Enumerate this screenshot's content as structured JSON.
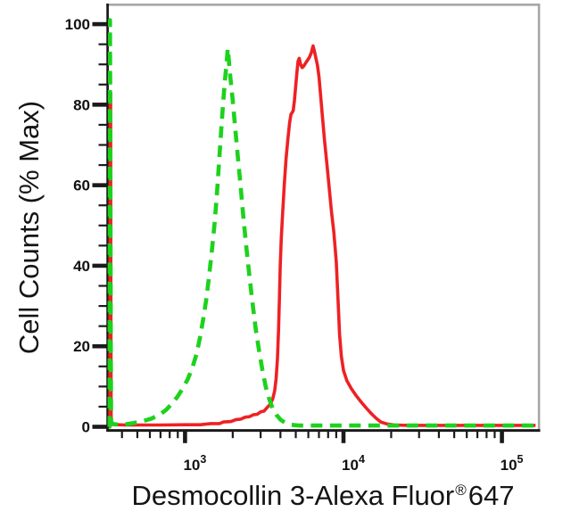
{
  "labels": {
    "ylabel": "Cell Counts (% Max)",
    "xlabel_main": "Desmocollin 3-Alexa Fluor",
    "xlabel_registered": "®",
    "xlabel_suffix": "647"
  },
  "colors": {
    "background": "#ffffff",
    "axis": "#1a1a1a",
    "frame": "#a6a6a6",
    "tick_text": "#111111",
    "red_series": "#ee2124",
    "green_series": "#1dd21d"
  },
  "chart_data": {
    "type": "line",
    "title": "",
    "xlabel": "Desmocollin 3-Alexa Fluor®647",
    "ylabel": "Cell Counts (% Max)",
    "x_scale": "log10",
    "xlim": [
      322,
      170000
    ],
    "ylim": [
      0,
      105
    ],
    "grid": false,
    "legend": "none",
    "y_major_ticks": [
      {
        "value": 0,
        "label": "0"
      },
      {
        "value": 20,
        "label": "20"
      },
      {
        "value": 40,
        "label": "40"
      },
      {
        "value": 60,
        "label": "60"
      },
      {
        "value": 80,
        "label": "80"
      },
      {
        "value": 100,
        "label": "100"
      }
    ],
    "y_minor_ticks": [
      5,
      10,
      15,
      25,
      30,
      35,
      45,
      50,
      55,
      65,
      70,
      75,
      85,
      90,
      95
    ],
    "x_major_ticks": [
      {
        "value": 1000,
        "base": "10",
        "exp": "3"
      },
      {
        "value": 10000,
        "base": "10",
        "exp": "4"
      },
      {
        "value": 100000,
        "base": "10",
        "exp": "5"
      }
    ],
    "x_minor_ticks": [
      400,
      500,
      600,
      700,
      800,
      900,
      2000,
      3000,
      4000,
      5000,
      6000,
      7000,
      8000,
      9000,
      20000,
      30000,
      40000,
      50000,
      60000,
      70000,
      80000,
      90000
    ],
    "series": [
      {
        "name": "red_solid",
        "style": "solid",
        "color": "#ee2124",
        "peak": {
          "x": 6430,
          "y": 94.6
        },
        "points": [
          [
            330,
            0
          ],
          [
            335,
            0
          ],
          [
            336,
            45
          ],
          [
            337,
            83
          ],
          [
            339,
            83
          ],
          [
            340,
            40
          ],
          [
            342,
            0.6
          ],
          [
            420,
            0.45
          ],
          [
            700,
            0.45
          ],
          [
            1000,
            0.5
          ],
          [
            1250,
            0.5
          ],
          [
            1450,
            0.8
          ],
          [
            1650,
            0.8
          ],
          [
            1750,
            1.2
          ],
          [
            1950,
            1.3
          ],
          [
            2100,
            1.8
          ],
          [
            2250,
            1.9
          ],
          [
            2400,
            2.4
          ],
          [
            2550,
            2.5
          ],
          [
            2700,
            3.0
          ],
          [
            2850,
            3.1
          ],
          [
            3000,
            3.7
          ],
          [
            3150,
            3.9
          ],
          [
            3300,
            4.8
          ],
          [
            3450,
            5.6
          ],
          [
            3580,
            7
          ],
          [
            3680,
            9
          ],
          [
            3760,
            12
          ],
          [
            3830,
            17
          ],
          [
            3890,
            24
          ],
          [
            3940,
            32
          ],
          [
            3990,
            40
          ],
          [
            4050,
            47
          ],
          [
            4130,
            53
          ],
          [
            4230,
            60
          ],
          [
            4340,
            66.5
          ],
          [
            4460,
            71.5
          ],
          [
            4570,
            75.5
          ],
          [
            4660,
            77.6
          ],
          [
            4740,
            78
          ],
          [
            4820,
            78.6
          ],
          [
            4900,
            81
          ],
          [
            4990,
            84.5
          ],
          [
            5080,
            88
          ],
          [
            5170,
            90.8
          ],
          [
            5260,
            91.5
          ],
          [
            5360,
            90
          ],
          [
            5490,
            89.2
          ],
          [
            5620,
            89.6
          ],
          [
            5760,
            90.3
          ],
          [
            5920,
            91
          ],
          [
            6100,
            91.8
          ],
          [
            6280,
            93
          ],
          [
            6430,
            94.6
          ],
          [
            6560,
            93.2
          ],
          [
            6700,
            91.5
          ],
          [
            6850,
            89.8
          ],
          [
            7000,
            87
          ],
          [
            7150,
            83
          ],
          [
            7350,
            77.5
          ],
          [
            7600,
            71
          ],
          [
            7850,
            65.5
          ],
          [
            8100,
            60
          ],
          [
            8400,
            53.5
          ],
          [
            8700,
            48.3
          ],
          [
            9000,
            41
          ],
          [
            9250,
            31
          ],
          [
            9450,
            23
          ],
          [
            9700,
            17.5
          ],
          [
            10000,
            14
          ],
          [
            10500,
            11.5
          ],
          [
            11200,
            9.5
          ],
          [
            12000,
            7.8
          ],
          [
            12900,
            6.2
          ],
          [
            13900,
            4.7
          ],
          [
            14900,
            3.4
          ],
          [
            16000,
            2.2
          ],
          [
            17200,
            1.2
          ],
          [
            18800,
            0.7
          ],
          [
            21000,
            0.45
          ],
          [
            26000,
            0.35
          ],
          [
            40000,
            0.35
          ],
          [
            70000,
            0.35
          ],
          [
            120000,
            0.35
          ],
          [
            163000,
            0.35
          ]
        ]
      },
      {
        "name": "green_dashed",
        "style": "dashed",
        "color": "#1dd21d",
        "peak": {
          "x": 1860,
          "y": 94
        },
        "points": [
          [
            330,
            0
          ],
          [
            334,
            0
          ],
          [
            335,
            55
          ],
          [
            336,
            101
          ],
          [
            338,
            70
          ],
          [
            340,
            20
          ],
          [
            342,
            1
          ],
          [
            360,
            0.6
          ],
          [
            420,
            0.6
          ],
          [
            470,
            0.9
          ],
          [
            540,
            1.4
          ],
          [
            610,
            2
          ],
          [
            690,
            3
          ],
          [
            760,
            4.2
          ],
          [
            830,
            5.8
          ],
          [
            900,
            7.6
          ],
          [
            970,
            9.6
          ],
          [
            1040,
            11.8
          ],
          [
            1110,
            14.5
          ],
          [
            1180,
            18
          ],
          [
            1240,
            22
          ],
          [
            1300,
            26.5
          ],
          [
            1360,
            31.5
          ],
          [
            1420,
            37.5
          ],
          [
            1480,
            44
          ],
          [
            1540,
            51
          ],
          [
            1590,
            58
          ],
          [
            1640,
            66
          ],
          [
            1690,
            73.5
          ],
          [
            1740,
            80.5
          ],
          [
            1790,
            86.5
          ],
          [
            1830,
            90.5
          ],
          [
            1860,
            94
          ],
          [
            1890,
            91
          ],
          [
            1930,
            87
          ],
          [
            2000,
            81
          ],
          [
            2070,
            74.5
          ],
          [
            2150,
            67.5
          ],
          [
            2240,
            60
          ],
          [
            2330,
            52.5
          ],
          [
            2430,
            45
          ],
          [
            2540,
            38
          ],
          [
            2660,
            31
          ],
          [
            2790,
            24.5
          ],
          [
            2930,
            19
          ],
          [
            3080,
            14
          ],
          [
            3230,
            10
          ],
          [
            3390,
            7
          ],
          [
            3570,
            4.6
          ],
          [
            3780,
            2.9
          ],
          [
            4020,
            1.7
          ],
          [
            4300,
            1
          ],
          [
            4650,
            0.5
          ],
          [
            5200,
            0.3
          ],
          [
            6500,
            0.3
          ],
          [
            9000,
            0.3
          ],
          [
            15000,
            0.3
          ],
          [
            30000,
            0.3
          ],
          [
            70000,
            0.3
          ],
          [
            160000,
            0.3
          ]
        ]
      }
    ]
  }
}
